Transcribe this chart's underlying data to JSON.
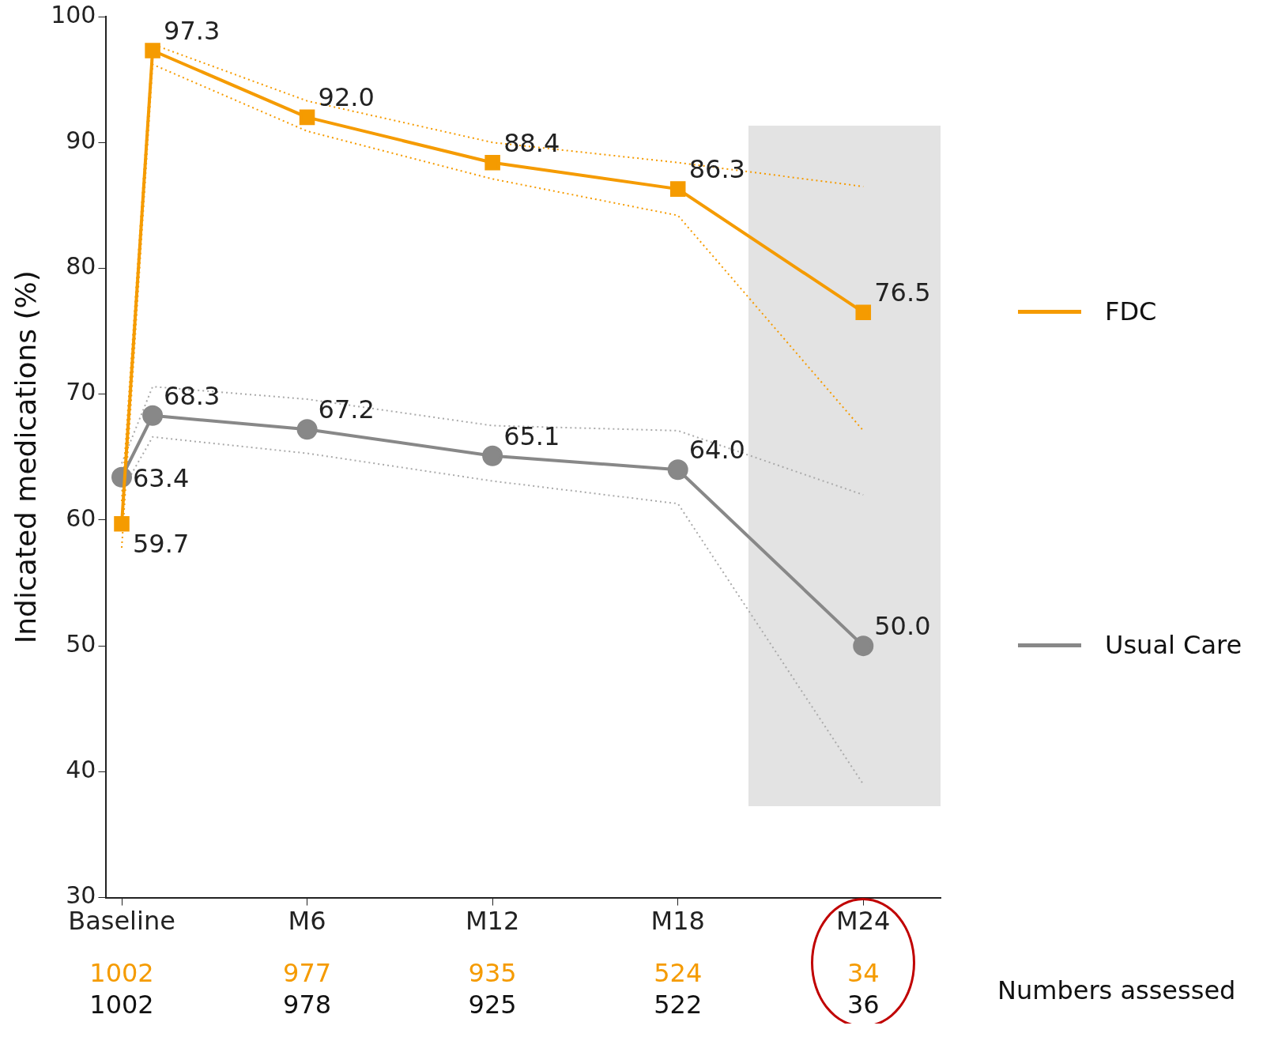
{
  "chart_data": {
    "type": "line",
    "ylabel": "Indicated medications (%)",
    "categories": [
      "Baseline",
      null,
      null,
      null,
      null,
      null,
      "M6",
      null,
      null,
      null,
      null,
      null,
      "M12",
      null,
      null,
      null,
      null,
      null,
      "M18",
      null,
      null,
      null,
      null,
      null,
      "M24",
      null,
      null
    ],
    "ylim": [
      30,
      100
    ],
    "yticks": [
      30,
      40,
      50,
      60,
      70,
      80,
      90,
      100
    ],
    "series": [
      {
        "name": "FDC",
        "color": "#f59b00",
        "marker": "square",
        "values": [
          59.7,
          97.3,
          null,
          null,
          null,
          null,
          92.0,
          null,
          null,
          null,
          null,
          null,
          88.4,
          null,
          null,
          null,
          null,
          null,
          86.3,
          null,
          null,
          null,
          null,
          null,
          76.5,
          null,
          null
        ],
        "value_labels": [
          "59.7",
          "97.3",
          null,
          null,
          null,
          null,
          "92.0",
          null,
          null,
          null,
          null,
          null,
          "88.4",
          null,
          null,
          null,
          null,
          null,
          "86.3",
          null,
          null,
          null,
          null,
          null,
          "76.5",
          null,
          null
        ]
      },
      {
        "name": "Usual Care",
        "color": "#888888",
        "marker": "circle",
        "values": [
          63.4,
          68.3,
          null,
          null,
          null,
          null,
          67.2,
          null,
          null,
          null,
          null,
          null,
          65.1,
          null,
          null,
          null,
          null,
          null,
          64.0,
          null,
          null,
          null,
          null,
          null,
          50.0,
          null,
          null
        ],
        "value_labels": [
          "63.4",
          "68.3",
          null,
          null,
          null,
          null,
          "67.2",
          null,
          null,
          null,
          null,
          null,
          "65.1",
          null,
          null,
          null,
          null,
          null,
          "64.0",
          null,
          null,
          null,
          null,
          null,
          "50.0",
          null,
          null
        ]
      },
      {
        "color": "#f59b00",
        "marker": "none",
        "line_style": "dotted",
        "values": [
          57.8,
          96.2,
          null,
          null,
          null,
          null,
          90.9,
          null,
          null,
          null,
          null,
          null,
          87.1,
          null,
          null,
          null,
          null,
          null,
          84.2,
          null,
          null,
          null,
          null,
          null,
          67.1,
          null,
          null
        ]
      },
      {
        "color": "#f59b00",
        "marker": "none",
        "line_style": "dotted",
        "values": [
          61.5,
          97.8,
          null,
          null,
          null,
          null,
          93.3,
          null,
          null,
          null,
          null,
          null,
          90.0,
          null,
          null,
          null,
          null,
          null,
          88.4,
          null,
          null,
          null,
          null,
          null,
          86.5,
          null,
          null
        ]
      },
      {
        "color": "#aaaaaa",
        "marker": "none",
        "line_style": "dotted",
        "values": [
          62.3,
          66.6,
          null,
          null,
          null,
          null,
          65.3,
          null,
          null,
          null,
          null,
          null,
          63.1,
          null,
          null,
          null,
          null,
          null,
          61.3,
          null,
          null,
          null,
          null,
          null,
          39.0,
          null,
          null
        ]
      },
      {
        "color": "#aaaaaa",
        "marker": "none",
        "line_style": "dotted",
        "values": [
          64.5,
          70.6,
          null,
          null,
          null,
          null,
          69.6,
          null,
          null,
          null,
          null,
          null,
          67.5,
          null,
          null,
          null,
          null,
          null,
          67.1,
          null,
          null,
          null,
          null,
          null,
          62.0,
          null,
          null
        ]
      }
    ],
    "grid": false,
    "legend": "right",
    "line_style": "solid",
    "annotations": [
      "1002",
      "977",
      "935",
      "524",
      "34",
      "1002",
      "978",
      "925",
      "522",
      "36",
      "Numbers assessed"
    ]
  }
}
